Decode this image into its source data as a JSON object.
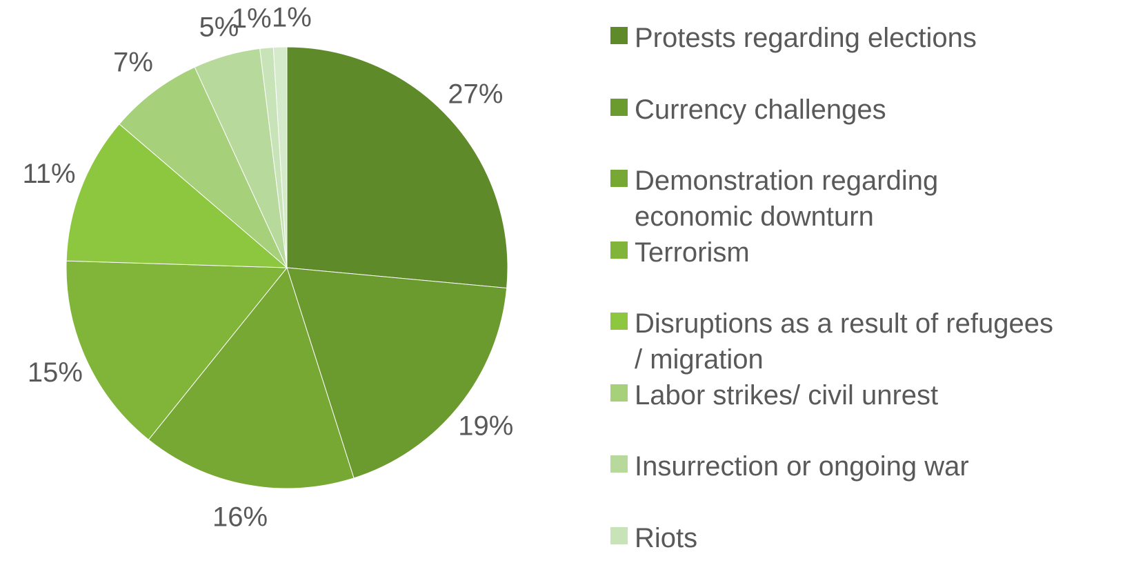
{
  "chart_data": {
    "type": "pie",
    "categories": [
      "Protests regarding elections",
      "Currency challenges",
      "Demonstration regarding economic downturn",
      "Terrorism",
      "Disruptions as a result of refugees / migration",
      "Labor strikes/ civil unrest",
      "Insurrection or ongoing war",
      "Riots",
      null
    ],
    "values": [
      27,
      19,
      16,
      15,
      11,
      7,
      5,
      1,
      1
    ],
    "value_labels": [
      "27%",
      "19%",
      "16%",
      "15%",
      "11%",
      "7%",
      "5%",
      "1%",
      "1%"
    ],
    "colors": [
      "#5e8a2a",
      "#6b9a2e",
      "#77a834",
      "#80b53a",
      "#8dc63f",
      "#a6d07a",
      "#b7da9c",
      "#c8e3b7",
      "#d5eacb"
    ],
    "legend": "right"
  }
}
